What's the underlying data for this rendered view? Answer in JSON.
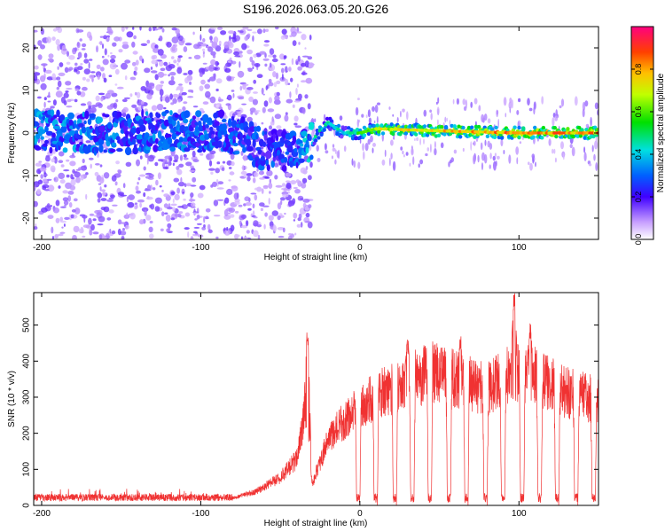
{
  "title": "S196.2026.063.05.20.G26",
  "colors": {
    "snr_line": "#f03232",
    "axis": "#000000"
  },
  "chart_data": [
    {
      "type": "heatmap",
      "title": "S196.2026.063.05.20.G26",
      "xlabel": "Height of straight line (km)",
      "ylabel": "Frequency (Hz)",
      "xlim": [
        -205,
        150
      ],
      "ylim": [
        -25,
        25
      ],
      "xticks": [
        -200,
        -100,
        0,
        100
      ],
      "yticks": [
        -20,
        -10,
        0,
        10,
        20
      ],
      "colorbar": {
        "label": "Normalized spectral amplitude",
        "range": [
          0,
          1
        ],
        "ticks": [
          0.0,
          0.2,
          0.4,
          0.6,
          0.8
        ],
        "tick_labels": [
          "0.0",
          "0.2",
          "0.4",
          "0.6",
          "0.8"
        ]
      },
      "ridge": [
        {
          "x": -200,
          "f": 0.5,
          "a": 0.35
        },
        {
          "x": -160,
          "f": 0.0,
          "a": 0.33
        },
        {
          "x": -120,
          "f": 0.5,
          "a": 0.32
        },
        {
          "x": -80,
          "f": 0.0,
          "a": 0.3
        },
        {
          "x": -60,
          "f": -4.0,
          "a": 0.28
        },
        {
          "x": -40,
          "f": -4.0,
          "a": 0.28
        },
        {
          "x": -30,
          "f": -2.0,
          "a": 0.45
        },
        {
          "x": -20,
          "f": 2.5,
          "a": 0.5
        },
        {
          "x": -10,
          "f": 0.0,
          "a": 0.4
        },
        {
          "x": 0,
          "f": 0.0,
          "a": 0.55
        },
        {
          "x": 10,
          "f": 1.0,
          "a": 0.7
        },
        {
          "x": 50,
          "f": 0.5,
          "a": 0.75
        },
        {
          "x": 100,
          "f": 0.0,
          "a": 0.85
        },
        {
          "x": 150,
          "f": 0.0,
          "a": 0.8
        }
      ]
    },
    {
      "type": "line",
      "xlabel": "Height of straight line (km)",
      "ylabel": "SNR (10 * v/v)",
      "xlim": [
        -205,
        150
      ],
      "ylim": [
        0,
        590
      ],
      "xticks": [
        -200,
        -100,
        0,
        100
      ],
      "yticks": [
        0,
        100,
        200,
        300,
        400,
        500
      ],
      "series": [
        {
          "name": "SNR",
          "envelope": [
            {
              "x": -205,
              "y": 20
            },
            {
              "x": -80,
              "y": 20
            },
            {
              "x": -65,
              "y": 40
            },
            {
              "x": -50,
              "y": 80
            },
            {
              "x": -40,
              "y": 130
            },
            {
              "x": -33,
              "y": 300
            },
            {
              "x": -30,
              "y": 60
            },
            {
              "x": -20,
              "y": 190
            },
            {
              "x": -10,
              "y": 240
            },
            {
              "x": 0,
              "y": 280
            },
            {
              "x": 10,
              "y": 310
            },
            {
              "x": 20,
              "y": 330
            },
            {
              "x": 30,
              "y": 350
            },
            {
              "x": 45,
              "y": 380
            },
            {
              "x": 60,
              "y": 360
            },
            {
              "x": 80,
              "y": 330
            },
            {
              "x": 95,
              "y": 380
            },
            {
              "x": 110,
              "y": 370
            },
            {
              "x": 130,
              "y": 320
            },
            {
              "x": 150,
              "y": 300
            }
          ],
          "peaks": [
            {
              "x": -33,
              "y": 485
            },
            {
              "x": 30,
              "y": 460
            },
            {
              "x": 45,
              "y": 490
            },
            {
              "x": 63,
              "y": 470
            },
            {
              "x": 97,
              "y": 590
            },
            {
              "x": 107,
              "y": 510
            }
          ],
          "dropouts": [
            -1,
            10,
            22,
            33,
            44,
            56,
            67,
            79,
            90,
            102,
            113,
            124,
            136,
            147
          ]
        }
      ]
    }
  ]
}
